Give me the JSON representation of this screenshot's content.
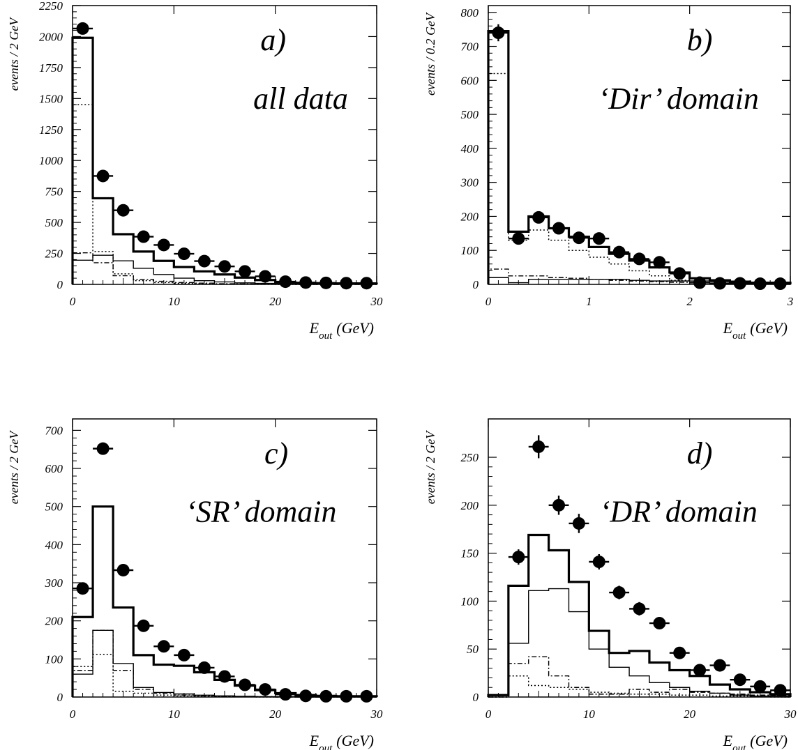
{
  "chart_data": [
    {
      "type": "histogram",
      "panel_label": "a)",
      "caption": "all data",
      "ylabel": "events / 2 GeV",
      "xlabel": "E",
      "xlabel_sub": "out",
      "xlabel_unit": "(GeV)",
      "xlim": [
        0,
        30
      ],
      "ylim": [
        0,
        2250
      ],
      "xticks": [
        0,
        10,
        20,
        30
      ],
      "yticks": [
        0,
        250,
        500,
        750,
        1000,
        1250,
        1500,
        1750,
        2000,
        2250
      ],
      "bin_edges": [
        0,
        2,
        4,
        6,
        8,
        10,
        12,
        14,
        16,
        18,
        20,
        22,
        24,
        26,
        28,
        30
      ],
      "points": {
        "x": [
          1,
          3,
          5,
          7,
          9,
          11,
          13,
          15,
          17,
          19,
          21,
          23,
          25,
          27,
          29
        ],
        "y": [
          2065,
          875,
          598,
          385,
          318,
          247,
          188,
          145,
          105,
          65,
          22,
          15,
          12,
          10,
          10
        ],
        "yerr": [
          25,
          15,
          13,
          10,
          9,
          8,
          7,
          6,
          5,
          4,
          3,
          2,
          2,
          2,
          2
        ]
      },
      "series": [
        {
          "style": "thick-solid",
          "values": [
            1990,
            695,
            405,
            265,
            190,
            140,
            105,
            80,
            55,
            35,
            15,
            10,
            8,
            6,
            6
          ]
        },
        {
          "style": "dotted",
          "values": [
            1450,
            265,
            85,
            30,
            15,
            8,
            5,
            3,
            2,
            1,
            0,
            0,
            0,
            0,
            0
          ]
        },
        {
          "style": "thin-solid",
          "values": [
            195,
            235,
            190,
            130,
            80,
            50,
            30,
            20,
            12,
            8,
            4,
            2,
            1,
            1,
            1
          ]
        },
        {
          "style": "dash-dot",
          "values": [
            255,
            175,
            70,
            40,
            25,
            15,
            10,
            5,
            3,
            2,
            1,
            0,
            0,
            0,
            0
          ]
        }
      ]
    },
    {
      "type": "histogram",
      "panel_label": "b)",
      "caption": "‘Dir’ domain",
      "ylabel": "events / 0.2 GeV",
      "xlabel": "E",
      "xlabel_sub": "out",
      "xlabel_unit": "(GeV)",
      "xlim": [
        0,
        3
      ],
      "ylim": [
        0,
        820
      ],
      "xticks": [
        0,
        1,
        2,
        3
      ],
      "yticks": [
        0,
        100,
        200,
        300,
        400,
        500,
        600,
        700,
        800
      ],
      "bin_edges": [
        0,
        0.2,
        0.4,
        0.6,
        0.8,
        1.0,
        1.2,
        1.4,
        1.6,
        1.8,
        2.0,
        2.2,
        2.4,
        2.6,
        2.8,
        3.0
      ],
      "points": {
        "x": [
          0.1,
          0.3,
          0.5,
          0.7,
          0.9,
          1.1,
          1.3,
          1.5,
          1.7,
          1.9,
          2.1,
          2.3,
          2.5,
          2.7,
          2.9
        ],
        "y": [
          740,
          135,
          197,
          165,
          137,
          135,
          95,
          75,
          65,
          32,
          5,
          3,
          3,
          2,
          2
        ],
        "yerr": [
          25,
          10,
          12,
          10,
          9,
          9,
          8,
          7,
          6,
          5,
          2,
          2,
          2,
          1,
          1
        ]
      },
      "series": [
        {
          "style": "thick-solid",
          "values": [
            745,
            155,
            200,
            165,
            140,
            110,
            90,
            70,
            50,
            35,
            18,
            12,
            8,
            5,
            5
          ]
        },
        {
          "style": "dotted",
          "values": [
            620,
            130,
            160,
            130,
            100,
            80,
            60,
            40,
            25,
            12,
            5,
            3,
            2,
            1,
            1
          ]
        },
        {
          "style": "thin-solid",
          "values": [
            20,
            5,
            15,
            15,
            15,
            15,
            15,
            12,
            10,
            10,
            10,
            8,
            8,
            5,
            5
          ]
        },
        {
          "style": "dash-dot",
          "values": [
            45,
            25,
            25,
            20,
            18,
            15,
            12,
            10,
            8,
            6,
            5,
            3,
            3,
            2,
            2
          ]
        }
      ]
    },
    {
      "type": "histogram",
      "panel_label": "c)",
      "caption": "‘SR’ domain",
      "ylabel": "events / 2 GeV",
      "xlabel": "E",
      "xlabel_sub": "out",
      "xlabel_unit": "(GeV)",
      "xlim": [
        0,
        30
      ],
      "ylim": [
        0,
        730
      ],
      "xticks": [
        0,
        10,
        20,
        30
      ],
      "yticks": [
        0,
        100,
        200,
        300,
        400,
        500,
        600,
        700
      ],
      "bin_edges": [
        0,
        2,
        4,
        6,
        8,
        10,
        12,
        14,
        16,
        18,
        20,
        22,
        24,
        26,
        28,
        30
      ],
      "points": {
        "x": [
          1,
          3,
          5,
          7,
          9,
          11,
          13,
          15,
          17,
          19,
          21,
          23,
          25,
          27,
          29
        ],
        "y": [
          285,
          652,
          333,
          187,
          133,
          110,
          77,
          54,
          32,
          20,
          7,
          3,
          2,
          2,
          2
        ],
        "yerr": [
          10,
          15,
          10,
          8,
          7,
          6,
          5,
          4,
          3,
          3,
          2,
          1,
          1,
          1,
          1
        ]
      },
      "series": [
        {
          "style": "thick-solid",
          "values": [
            210,
            500,
            235,
            110,
            85,
            82,
            65,
            45,
            30,
            18,
            10,
            5,
            3,
            2,
            2
          ]
        },
        {
          "style": "dotted",
          "values": [
            80,
            112,
            15,
            10,
            5,
            3,
            2,
            1,
            1,
            0,
            0,
            0,
            0,
            0,
            0
          ]
        },
        {
          "style": "thin-solid",
          "values": [
            60,
            175,
            88,
            25,
            12,
            8,
            5,
            3,
            2,
            1,
            1,
            0,
            0,
            0,
            0
          ]
        },
        {
          "style": "dash-dot",
          "values": [
            70,
            175,
            70,
            20,
            10,
            5,
            3,
            2,
            1,
            1,
            0,
            0,
            0,
            0,
            0
          ]
        }
      ]
    },
    {
      "type": "histogram",
      "panel_label": "d)",
      "caption": "‘DR’ domain",
      "ylabel": "events / 2 GeV",
      "xlabel": "E",
      "xlabel_sub": "out",
      "xlabel_unit": "(GeV)",
      "xlim": [
        0,
        30
      ],
      "ylim": [
        0,
        290
      ],
      "xticks": [
        0,
        10,
        20,
        30
      ],
      "yticks": [
        0,
        50,
        100,
        150,
        200,
        250
      ],
      "bin_edges": [
        0,
        2,
        4,
        6,
        8,
        10,
        12,
        14,
        16,
        18,
        20,
        22,
        24,
        26,
        28,
        30
      ],
      "points": {
        "x": [
          3,
          5,
          7,
          9,
          11,
          13,
          15,
          17,
          19,
          21,
          23,
          25,
          27,
          29
        ],
        "y": [
          146,
          261,
          200,
          181,
          141,
          109,
          92,
          77,
          46,
          28,
          33,
          18,
          11,
          7
        ],
        "yerr": [
          8,
          12,
          10,
          10,
          8,
          7,
          7,
          6,
          5,
          4,
          4,
          3,
          3,
          2
        ]
      },
      "series": [
        {
          "style": "thick-solid",
          "values": [
            2,
            116,
            169,
            153,
            120,
            69,
            46,
            48,
            36,
            28,
            22,
            13,
            8,
            5,
            3
          ]
        },
        {
          "style": "thin-solid",
          "values": [
            2,
            56,
            111,
            113,
            89,
            50,
            31,
            22,
            15,
            10,
            6,
            4,
            2,
            1,
            1
          ]
        },
        {
          "style": "dotted",
          "values": [
            0,
            22,
            12,
            10,
            8,
            5,
            4,
            3,
            3,
            2,
            2,
            1,
            1,
            1,
            0
          ]
        },
        {
          "style": "dash-dot",
          "values": [
            0,
            35,
            42,
            22,
            10,
            3,
            3,
            8,
            5,
            8,
            5,
            4,
            3,
            2,
            2
          ]
        }
      ]
    }
  ]
}
